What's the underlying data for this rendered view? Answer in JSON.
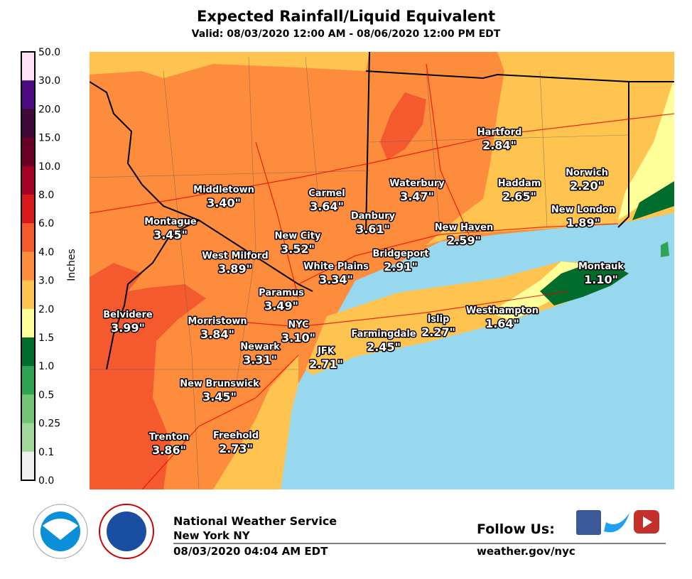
{
  "header": {
    "title": "Expected Rainfall/Liquid Equivalent",
    "subtitle": "Valid: 08/03/2020 12:00 AM - 08/06/2020 12:00 PM EDT"
  },
  "legend": {
    "label": "Inches",
    "ticks": [
      "50.0",
      "30.0",
      "20.0",
      "15.0",
      "10.0",
      "8.0",
      "6.0",
      "4.0",
      "3.0",
      "2.0",
      "1.5",
      "1.0",
      "0.5",
      "0.25",
      "0.1",
      "0.0"
    ],
    "colors": [
      "#ffe1f7",
      "#4d0b82",
      "#3d0a3a",
      "#6b0026",
      "#a50026",
      "#d7191c",
      "#f55a2f",
      "#fd8d3c",
      "#fec44f",
      "#ffff99",
      "#006d2c",
      "#31a354",
      "#74c476",
      "#a1d99b",
      "#f0f0f0"
    ]
  },
  "map": {
    "cities": [
      {
        "name": "Middletown",
        "amount": "3.40\""
      },
      {
        "name": "Carmel",
        "amount": "3.64\""
      },
      {
        "name": "Waterbury",
        "amount": "3.47\""
      },
      {
        "name": "Hartford",
        "amount": "2.84\""
      },
      {
        "name": "Haddam",
        "amount": "2.65\""
      },
      {
        "name": "Norwich",
        "amount": "2.20\""
      },
      {
        "name": "Montague",
        "amount": "3.45\""
      },
      {
        "name": "Danbury",
        "amount": "3.61\""
      },
      {
        "name": "New City",
        "amount": "3.52\""
      },
      {
        "name": "New London",
        "amount": "1.89\""
      },
      {
        "name": "New Haven",
        "amount": "2.59\""
      },
      {
        "name": "West Milford",
        "amount": "3.89\""
      },
      {
        "name": "Bridgeport",
        "amount": "2.91\""
      },
      {
        "name": "White Plains",
        "amount": "3.34\""
      },
      {
        "name": "Montauk",
        "amount": "1.10\""
      },
      {
        "name": "Paramus",
        "amount": "3.49\""
      },
      {
        "name": "Belvidere",
        "amount": "3.99\""
      },
      {
        "name": "Morristown",
        "amount": "3.84\""
      },
      {
        "name": "NYC",
        "amount": "3.10\""
      },
      {
        "name": "Islip",
        "amount": "2.27\""
      },
      {
        "name": "Westhampton",
        "amount": "1.64\""
      },
      {
        "name": "Farmingdale",
        "amount": "2.45\""
      },
      {
        "name": "Newark",
        "amount": "3.31\""
      },
      {
        "name": "JFK",
        "amount": "2.71\""
      },
      {
        "name": "New Brunswick",
        "amount": "3.45\""
      },
      {
        "name": "Trenton",
        "amount": "3.86\""
      },
      {
        "name": "Freehold",
        "amount": "2.73\""
      }
    ]
  },
  "footer": {
    "office": "National Weather Service",
    "location": "New York NY",
    "issued": "08/03/2020 04:04 AM EDT",
    "follow": "Follow Us:",
    "url": "weather.gov/nyc"
  }
}
